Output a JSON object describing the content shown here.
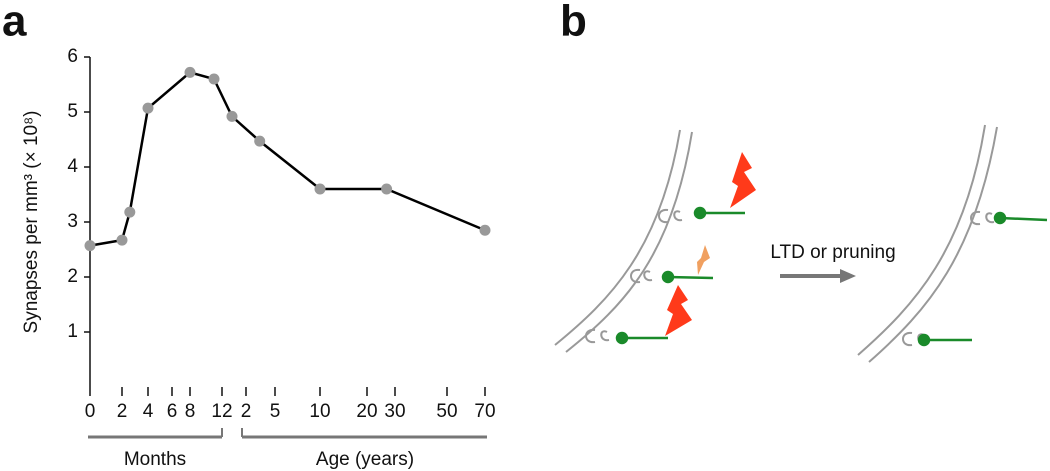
{
  "panel_labels": [
    "a",
    "b"
  ],
  "chart_data": {
    "type": "line",
    "y_label": "Synapses per mm³ (× 10⁸)",
    "group_labels": [
      "Months",
      "Age (years)"
    ],
    "x": [
      0,
      2,
      2.6,
      4,
      8,
      11,
      17,
      41,
      120,
      324,
      840
    ],
    "series": [
      {
        "name": "Synapses",
        "color": "#000000",
        "marker_color": "#999999",
        "values": [
          2.57,
          2.67,
          3.18,
          5.07,
          5.72,
          5.6,
          4.92,
          4.47,
          3.6,
          3.6,
          2.85
        ]
      }
    ],
    "xlim": [
      0,
      840
    ],
    "xticks": [
      0,
      2,
      4,
      6,
      8,
      12,
      {
        "value": 24,
        "label": "2"
      },
      {
        "value": 60,
        "label": "5"
      },
      {
        "value": 120,
        "label": "10"
      },
      {
        "value": 240,
        "label": "20"
      },
      {
        "value": 360,
        "label": "30"
      },
      {
        "value": 600,
        "label": "50"
      },
      {
        "value": 840,
        "label": "70"
      }
    ],
    "ylim": [
      0,
      6
    ],
    "yticks": [
      1,
      2,
      3,
      4,
      5,
      6
    ],
    "grid": false
  },
  "diagram": {
    "arrow_label": "LTD or pruning"
  }
}
